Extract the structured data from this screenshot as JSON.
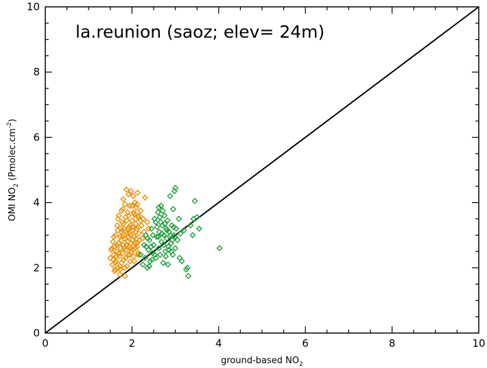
{
  "chart_data": {
    "type": "scatter",
    "title": "la.reunion (saoz; elev= 24m)",
    "xlabel": {
      "text": "ground-based NO",
      "sub": "2"
    },
    "ylabel": {
      "text": "OMI NO",
      "sub": "2",
      "rest": " (Pmolec.cm",
      "sup": "-2",
      "end": ")"
    },
    "xlim": [
      0,
      10
    ],
    "ylim": [
      0,
      10
    ],
    "xticks": [
      0,
      2,
      4,
      6,
      8,
      10
    ],
    "yticks": [
      0,
      2,
      4,
      6,
      8,
      10
    ],
    "xtick_labels": [
      "0",
      "2",
      "4",
      "6",
      "8",
      "10"
    ],
    "ytick_labels": [
      "0",
      "2",
      "4",
      "6",
      "8",
      "10"
    ],
    "reference_line": {
      "x": [
        0,
        10
      ],
      "y": [
        0,
        10
      ]
    },
    "marker": "diamond",
    "series": [
      {
        "color": "#e8900a",
        "points": [
          [
            1.5,
            2.3
          ],
          [
            1.52,
            2.55
          ],
          [
            1.55,
            2.1
          ],
          [
            1.56,
            2.8
          ],
          [
            1.58,
            2.4
          ],
          [
            1.6,
            1.9
          ],
          [
            1.6,
            2.65
          ],
          [
            1.62,
            3.0
          ],
          [
            1.63,
            2.2
          ],
          [
            1.65,
            2.5
          ],
          [
            1.66,
            3.3
          ],
          [
            1.68,
            2.0
          ],
          [
            1.69,
            2.75
          ],
          [
            1.7,
            3.6
          ],
          [
            1.71,
            2.35
          ],
          [
            1.72,
            1.8
          ],
          [
            1.73,
            2.95
          ],
          [
            1.74,
            2.6
          ],
          [
            1.75,
            3.1
          ],
          [
            1.76,
            2.15
          ],
          [
            1.77,
            3.4
          ],
          [
            1.78,
            2.45
          ],
          [
            1.79,
            3.8
          ],
          [
            1.8,
            2.7
          ],
          [
            1.8,
            4.1
          ],
          [
            1.81,
            2.25
          ],
          [
            1.82,
            3.2
          ],
          [
            1.83,
            2.9
          ],
          [
            1.84,
            1.75
          ],
          [
            1.85,
            3.55
          ],
          [
            1.86,
            2.55
          ],
          [
            1.87,
            4.4
          ],
          [
            1.88,
            3.05
          ],
          [
            1.89,
            2.05
          ],
          [
            1.9,
            3.7
          ],
          [
            1.9,
            2.8
          ],
          [
            1.91,
            2.4
          ],
          [
            1.92,
            4.25
          ],
          [
            1.93,
            3.25
          ],
          [
            1.94,
            2.65
          ],
          [
            1.95,
            3.9
          ],
          [
            1.96,
            2.2
          ],
          [
            1.97,
            3.0
          ],
          [
            1.98,
            4.35
          ],
          [
            1.99,
            2.5
          ],
          [
            2.0,
            3.45
          ],
          [
            2.01,
            2.85
          ],
          [
            2.02,
            3.15
          ],
          [
            2.03,
            4.2
          ],
          [
            2.04,
            2.35
          ],
          [
            2.05,
            3.65
          ],
          [
            2.06,
            2.95
          ],
          [
            2.07,
            4.0
          ],
          [
            2.08,
            2.6
          ],
          [
            2.09,
            3.35
          ],
          [
            2.1,
            3.85
          ],
          [
            2.11,
            2.75
          ],
          [
            2.12,
            3.2
          ],
          [
            2.13,
            4.3
          ],
          [
            2.14,
            2.45
          ],
          [
            2.15,
            3.55
          ],
          [
            2.16,
            3.05
          ],
          [
            2.18,
            2.85
          ],
          [
            2.2,
            3.75
          ],
          [
            2.22,
            3.3
          ],
          [
            2.24,
            2.9
          ],
          [
            2.26,
            3.5
          ],
          [
            2.28,
            3.1
          ],
          [
            2.3,
            4.15
          ],
          [
            2.32,
            3.0
          ],
          [
            2.35,
            3.4
          ],
          [
            2.38,
            3.2
          ],
          [
            1.65,
            2.7
          ],
          [
            1.7,
            2.45
          ],
          [
            1.75,
            2.85
          ],
          [
            1.78,
            3.15
          ],
          [
            1.82,
            2.6
          ],
          [
            1.85,
            2.3
          ],
          [
            1.88,
            2.7
          ],
          [
            1.92,
            2.95
          ],
          [
            1.95,
            2.4
          ],
          [
            1.98,
            2.75
          ],
          [
            2.02,
            2.55
          ],
          [
            2.05,
            2.2
          ],
          [
            2.08,
            3.1
          ],
          [
            2.12,
            2.65
          ],
          [
            2.15,
            2.4
          ],
          [
            1.58,
            2.95
          ],
          [
            1.62,
            2.15
          ],
          [
            1.68,
            3.5
          ],
          [
            1.72,
            2.05
          ],
          [
            1.76,
            3.75
          ],
          [
            1.8,
            3.35
          ],
          [
            1.84,
            3.95
          ],
          [
            1.88,
            3.45
          ],
          [
            1.92,
            3.6
          ],
          [
            1.96,
            3.3
          ],
          [
            2.0,
            3.9
          ],
          [
            2.04,
            3.7
          ],
          [
            2.08,
            3.5
          ],
          [
            2.12,
            3.95
          ],
          [
            2.16,
            3.6
          ],
          [
            2.2,
            3.45
          ],
          [
            1.54,
            2.6
          ],
          [
            1.57,
            2.25
          ],
          [
            1.64,
            2.35
          ],
          [
            1.67,
            3.15
          ],
          [
            1.74,
            3.2
          ],
          [
            1.79,
            2.95
          ],
          [
            1.86,
            3.1
          ],
          [
            1.91,
            3.2
          ],
          [
            1.94,
            3.05
          ],
          [
            1.97,
            2.6
          ],
          [
            2.01,
            3.25
          ],
          [
            2.06,
            2.75
          ],
          [
            2.1,
            2.9
          ],
          [
            2.14,
            3.25
          ],
          [
            1.61,
            1.95
          ],
          [
            1.73,
            1.95
          ],
          [
            1.83,
            2.0
          ]
        ]
      },
      {
        "color": "#1e9e3a",
        "points": [
          [
            2.2,
            2.4
          ],
          [
            2.25,
            2.1
          ],
          [
            2.28,
            2.7
          ],
          [
            2.3,
            2.3
          ],
          [
            2.32,
            3.0
          ],
          [
            2.35,
            2.0
          ],
          [
            2.38,
            2.55
          ],
          [
            2.4,
            2.85
          ],
          [
            2.42,
            2.2
          ],
          [
            2.45,
            3.2
          ],
          [
            2.47,
            2.45
          ],
          [
            2.5,
            2.7
          ],
          [
            2.52,
            3.5
          ],
          [
            2.55,
            2.3
          ],
          [
            2.57,
            2.95
          ],
          [
            2.6,
            3.7
          ],
          [
            2.62,
            2.6
          ],
          [
            2.63,
            3.1
          ],
          [
            2.65,
            2.4
          ],
          [
            2.67,
            3.9
          ],
          [
            2.68,
            2.8
          ],
          [
            2.7,
            3.3
          ],
          [
            2.72,
            2.15
          ],
          [
            2.74,
            3.0
          ],
          [
            2.75,
            3.6
          ],
          [
            2.77,
            2.5
          ],
          [
            2.79,
            3.2
          ],
          [
            2.8,
            2.9
          ],
          [
            2.82,
            3.45
          ],
          [
            2.84,
            2.65
          ],
          [
            2.86,
            3.1
          ],
          [
            2.88,
            4.2
          ],
          [
            2.9,
            2.75
          ],
          [
            2.92,
            3.3
          ],
          [
            2.94,
            2.4
          ],
          [
            2.95,
            3.8
          ],
          [
            2.97,
            3.0
          ],
          [
            2.98,
            4.35
          ],
          [
            3.0,
            2.6
          ],
          [
            3.0,
            4.45
          ],
          [
            3.02,
            3.2
          ],
          [
            3.05,
            2.85
          ],
          [
            3.08,
            3.5
          ],
          [
            3.1,
            2.3
          ],
          [
            3.12,
            3.05
          ],
          [
            3.15,
            2.2
          ],
          [
            3.2,
            3.15
          ],
          [
            3.25,
            1.95
          ],
          [
            3.28,
            2.0
          ],
          [
            3.3,
            1.75
          ],
          [
            3.35,
            3.3
          ],
          [
            3.4,
            3.0
          ],
          [
            3.42,
            3.5
          ],
          [
            3.45,
            4.05
          ],
          [
            3.5,
            3.55
          ],
          [
            3.55,
            3.2
          ],
          [
            4.02,
            2.6
          ],
          [
            2.36,
            2.9
          ],
          [
            2.44,
            2.65
          ],
          [
            2.48,
            3.0
          ],
          [
            2.53,
            2.4
          ],
          [
            2.58,
            3.25
          ],
          [
            2.61,
            2.95
          ],
          [
            2.66,
            3.4
          ],
          [
            2.69,
            3.05
          ],
          [
            2.73,
            2.7
          ],
          [
            2.76,
            3.35
          ],
          [
            2.81,
            3.15
          ],
          [
            2.85,
            2.55
          ],
          [
            2.89,
            3.0
          ],
          [
            2.93,
            2.85
          ],
          [
            2.96,
            3.25
          ],
          [
            2.55,
            3.4
          ],
          [
            2.62,
            3.85
          ],
          [
            2.71,
            3.75
          ],
          [
            2.78,
            2.35
          ],
          [
            2.83,
            2.1
          ],
          [
            2.91,
            2.5
          ],
          [
            2.99,
            2.95
          ],
          [
            2.4,
            2.05
          ],
          [
            2.46,
            2.25
          ],
          [
            2.33,
            2.65
          ],
          [
            2.64,
            3.55
          ]
        ]
      }
    ]
  }
}
